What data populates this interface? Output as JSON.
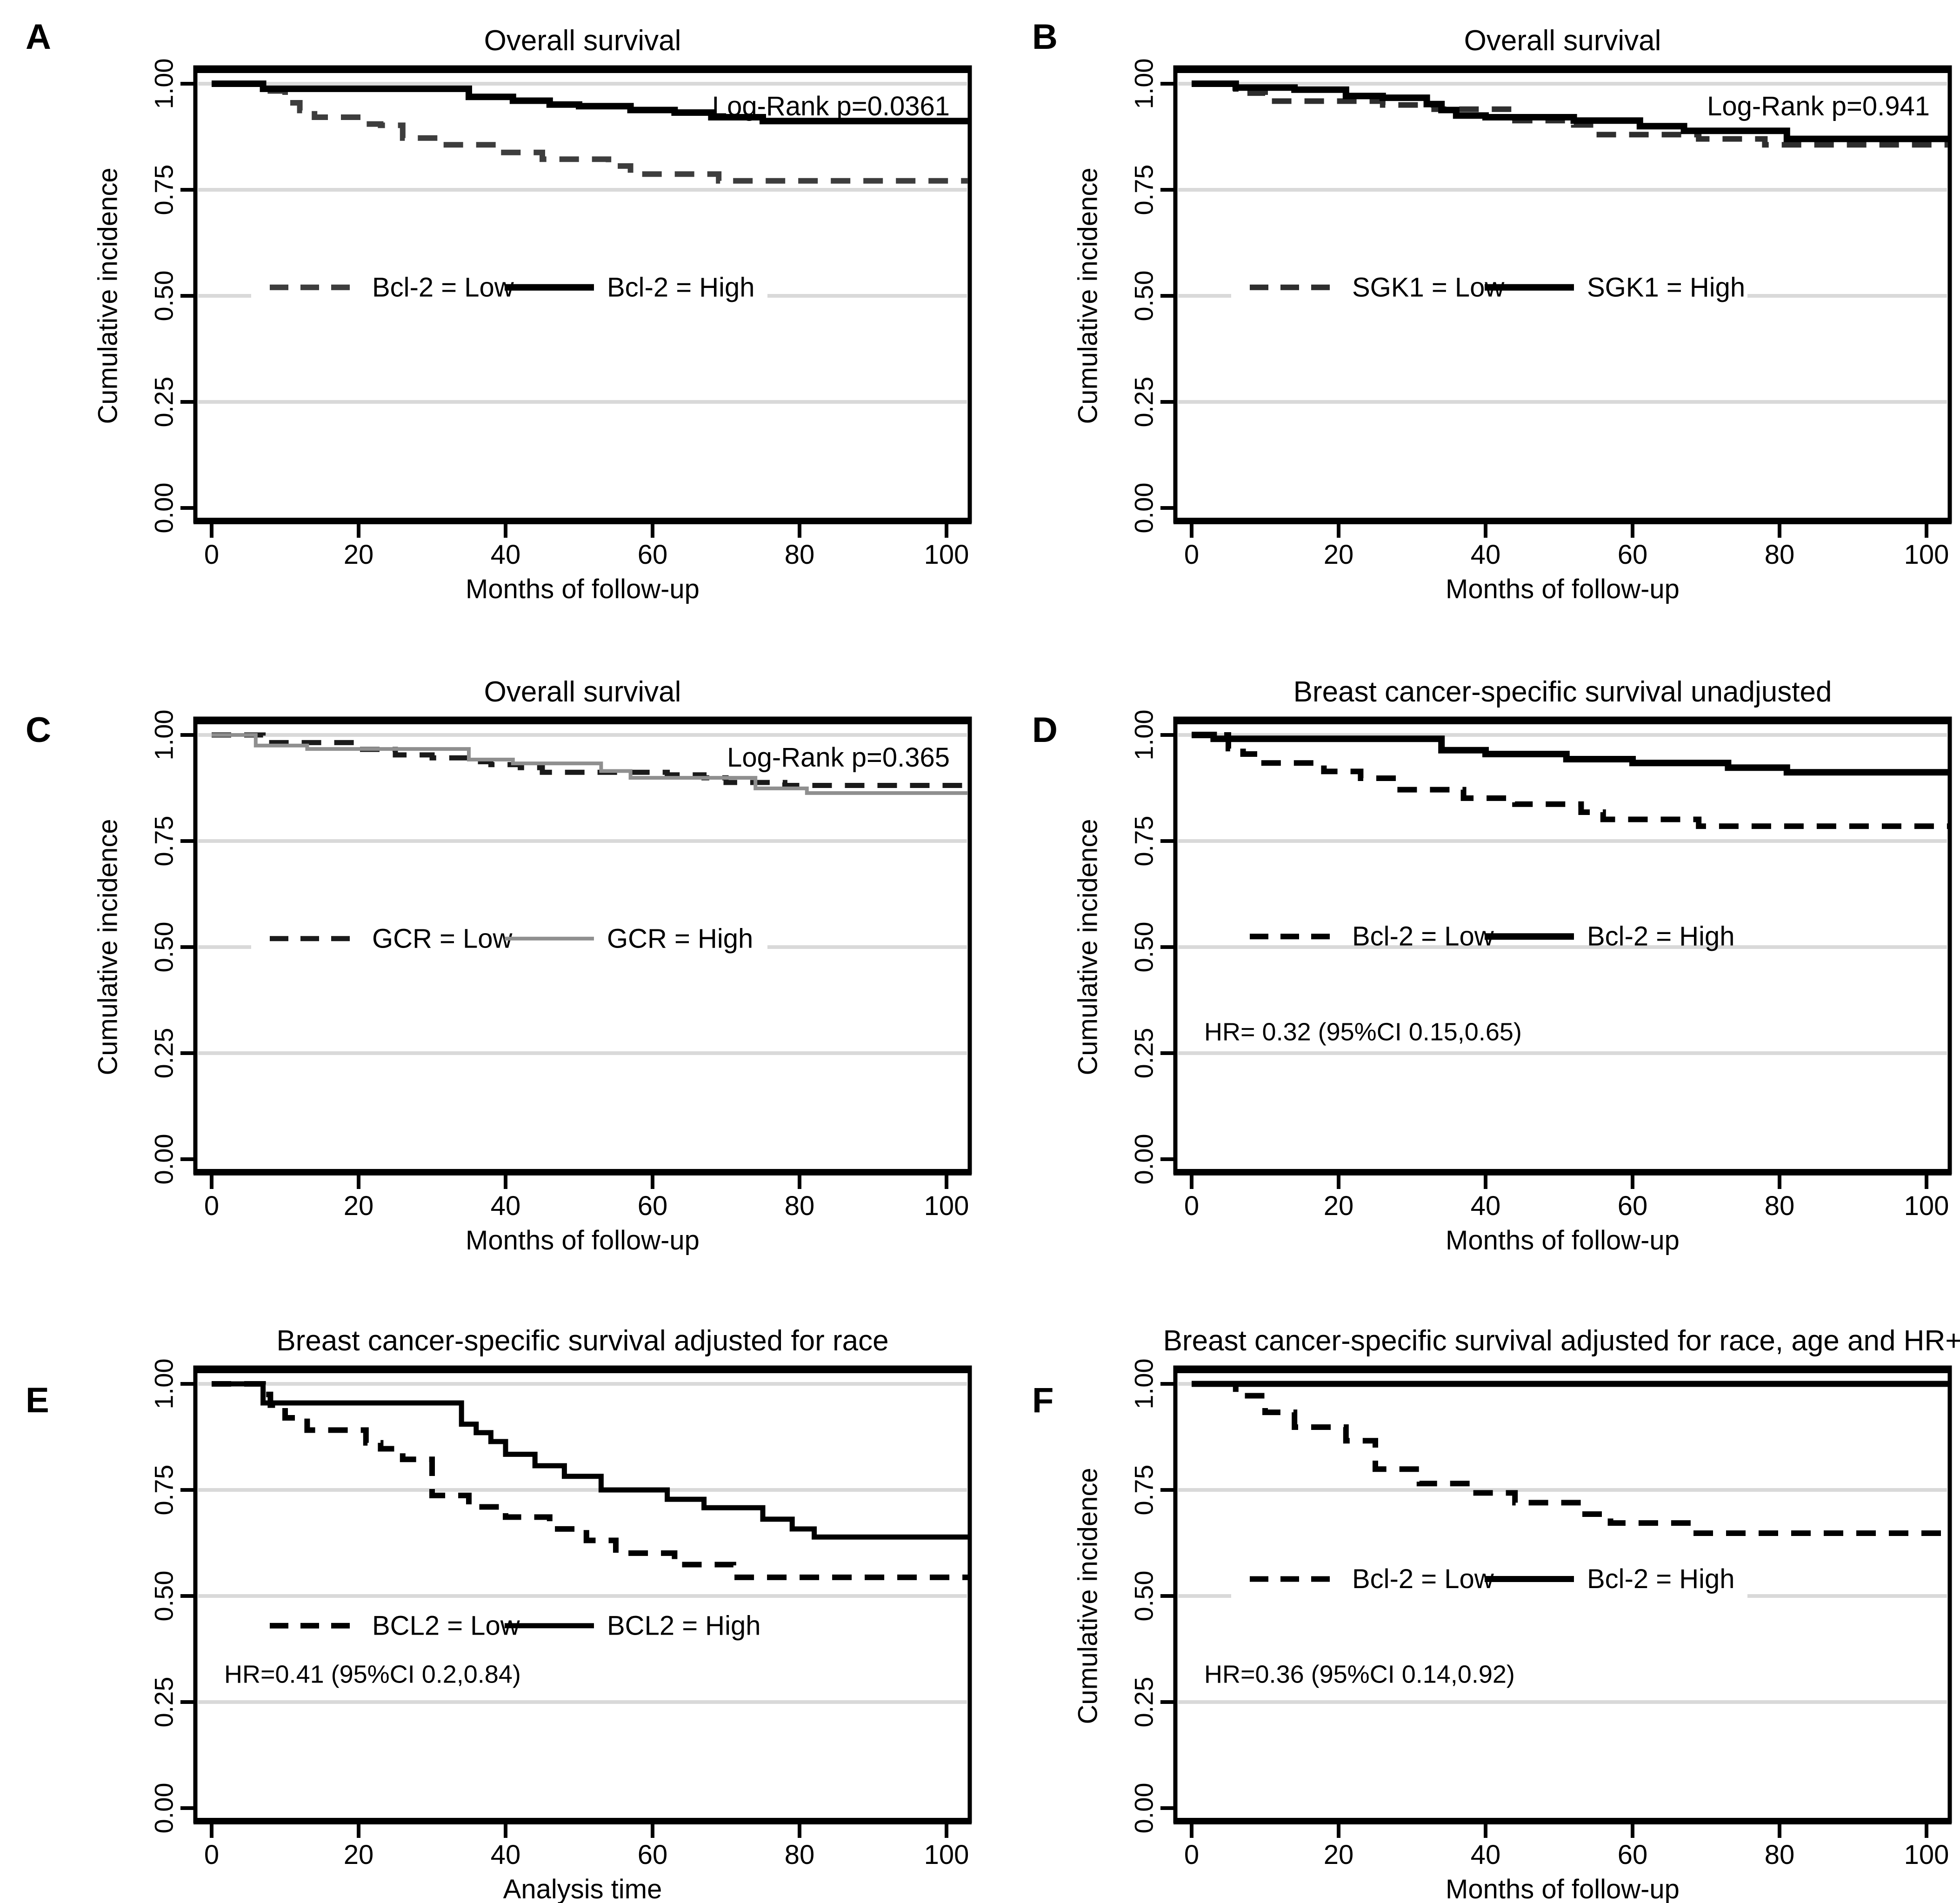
{
  "figure": {
    "background_color": "#ffffff",
    "grid_color": "#d9d9d9",
    "axis_color": "#000000"
  },
  "chart_data": [
    {
      "panel_label": "A",
      "type": "line",
      "subtype": "kaplan-meier-step",
      "title": "Overall survival",
      "xlabel": "Months of follow-up",
      "ylabel": "Cumulative incidence",
      "xlim": [
        0,
        103
      ],
      "ylim": [
        0,
        1.05
      ],
      "xticks": [
        0,
        20,
        40,
        60,
        80,
        100
      ],
      "yticks": [
        "0.00",
        "0.25",
        "0.50",
        "0.75",
        "1.00"
      ],
      "ytick_values": [
        0,
        0.25,
        0.5,
        0.75,
        1.0
      ],
      "grid_values": [
        0.25,
        0.5,
        0.75,
        1.0
      ],
      "grid_gap_at_050": true,
      "legend_position": "inside-left-middle",
      "legend_y": 0.52,
      "annotation_logrank": "Log-Rank p=0.0361",
      "annotation_hr": null,
      "annotation_hr_y": null,
      "series": [
        {
          "name": "Bcl-2 = Low",
          "style": "dashed",
          "color": "#3d3d3d",
          "width": 12,
          "points": [
            [
              0,
              1.0
            ],
            [
              8,
              0.983
            ],
            [
              10,
              0.955
            ],
            [
              12,
              0.937
            ],
            [
              14,
              0.921
            ],
            [
              21,
              0.905
            ],
            [
              23,
              0.902
            ],
            [
              26,
              0.872
            ],
            [
              31,
              0.856
            ],
            [
              39,
              0.838
            ],
            [
              45,
              0.822
            ],
            [
              54,
              0.806
            ],
            [
              57,
              0.787
            ],
            [
              69,
              0.771
            ]
          ]
        },
        {
          "name": "Bcl-2 = High",
          "style": "solid",
          "color": "#000000",
          "width": 14,
          "points": [
            [
              0,
              1.0
            ],
            [
              7,
              0.988
            ],
            [
              35,
              0.969
            ],
            [
              41,
              0.96
            ],
            [
              46,
              0.951
            ],
            [
              50,
              0.947
            ],
            [
              57,
              0.938
            ],
            [
              63,
              0.932
            ],
            [
              68,
              0.921
            ],
            [
              75,
              0.912
            ]
          ]
        }
      ]
    },
    {
      "panel_label": "B",
      "type": "line",
      "subtype": "kaplan-meier-step",
      "title": "Overall survival",
      "xlabel": "Months of follow-up",
      "ylabel": "Cumulative incidence",
      "xlim": [
        0,
        103
      ],
      "ylim": [
        0,
        1.05
      ],
      "xticks": [
        0,
        20,
        40,
        60,
        80,
        100
      ],
      "yticks": [
        "0.00",
        "0.25",
        "0.50",
        "0.75",
        "1.00"
      ],
      "ytick_values": [
        0,
        0.25,
        0.5,
        0.75,
        1.0
      ],
      "grid_values": [
        0.25,
        0.5,
        0.75,
        1.0
      ],
      "grid_gap_at_050": true,
      "legend_position": "inside-left-middle",
      "legend_y": 0.52,
      "annotation_logrank": "Log-Rank p=0.941",
      "annotation_hr": null,
      "annotation_hr_y": null,
      "series": [
        {
          "name": "SGK1 = Low",
          "style": "dashed",
          "color": "#2e2e2e",
          "width": 12,
          "points": [
            [
              0,
              1.0
            ],
            [
              6,
              0.978
            ],
            [
              10,
              0.959
            ],
            [
              26,
              0.95
            ],
            [
              33,
              0.94
            ],
            [
              44,
              0.913
            ],
            [
              52,
              0.903
            ],
            [
              55,
              0.88
            ],
            [
              69,
              0.87
            ],
            [
              78,
              0.856
            ]
          ]
        },
        {
          "name": "SGK1 = High",
          "style": "solid",
          "color": "#000000",
          "width": 14,
          "points": [
            [
              0,
              1.0
            ],
            [
              6,
              0.991
            ],
            [
              14,
              0.986
            ],
            [
              21,
              0.971
            ],
            [
              26,
              0.967
            ],
            [
              32,
              0.952
            ],
            [
              34,
              0.938
            ],
            [
              36,
              0.925
            ],
            [
              40,
              0.921
            ],
            [
              52,
              0.913
            ],
            [
              61,
              0.9
            ],
            [
              67,
              0.889
            ],
            [
              81,
              0.87
            ]
          ]
        }
      ]
    },
    {
      "panel_label": "C",
      "type": "line",
      "subtype": "kaplan-meier-step",
      "title": "Overall survival",
      "xlabel": "Months of follow-up",
      "ylabel": "Cumulative incidence",
      "xlim": [
        0,
        103
      ],
      "ylim": [
        0,
        1.05
      ],
      "xticks": [
        0,
        20,
        40,
        60,
        80,
        100
      ],
      "yticks": [
        "0.00",
        "0.25",
        "0.50",
        "0.75",
        "1.00"
      ],
      "ytick_values": [
        0,
        0.25,
        0.5,
        0.75,
        1.0
      ],
      "grid_values": [
        0.25,
        0.5,
        0.75,
        1.0
      ],
      "grid_gap_at_050": true,
      "legend_position": "inside-left-middle",
      "legend_y": 0.52,
      "annotation_logrank": "Log-Rank p=0.365",
      "annotation_hr": null,
      "annotation_hr_y": null,
      "series": [
        {
          "name": "GCR = Low",
          "style": "dashed",
          "color": "#1a1a1a",
          "width": 11,
          "points": [
            [
              0,
              1.0
            ],
            [
              7,
              0.982
            ],
            [
              20,
              0.966
            ],
            [
              25,
              0.953
            ],
            [
              30,
              0.946
            ],
            [
              35,
              0.937
            ],
            [
              38,
              0.93
            ],
            [
              42,
              0.923
            ],
            [
              45,
              0.912
            ],
            [
              62,
              0.906
            ],
            [
              67,
              0.899
            ],
            [
              70,
              0.888
            ],
            [
              78,
              0.881
            ]
          ]
        },
        {
          "name": "GCR = High",
          "style": "solid",
          "color": "#8f8f8f",
          "width": 8,
          "points": [
            [
              0,
              1.0
            ],
            [
              6,
              0.975
            ],
            [
              13,
              0.967
            ],
            [
              35,
              0.942
            ],
            [
              41,
              0.933
            ],
            [
              53,
              0.915
            ],
            [
              57,
              0.899
            ],
            [
              74,
              0.874
            ],
            [
              81,
              0.863
            ]
          ]
        }
      ]
    },
    {
      "panel_label": "D",
      "type": "line",
      "subtype": "kaplan-meier-step",
      "title": "Breast cancer-specific survival unadjusted",
      "xlabel": "Months of follow-up",
      "ylabel": "Cumulative incidence",
      "xlim": [
        0,
        103
      ],
      "ylim": [
        0,
        1.05
      ],
      "xticks": [
        0,
        20,
        40,
        60,
        80,
        100
      ],
      "yticks": [
        "0.00",
        "0.25",
        "0.50",
        "0.75",
        "1.00"
      ],
      "ytick_values": [
        0,
        0.25,
        0.5,
        0.75,
        1.0
      ],
      "grid_values": [
        0.25,
        0.5,
        0.75,
        1.0
      ],
      "grid_gap_at_050": false,
      "legend_position": "inside-left-middle",
      "legend_y": 0.525,
      "annotation_logrank": null,
      "annotation_hr": "HR= 0.32 (95%CI 0.15,0.65)",
      "annotation_hr_y": 0.3,
      "series": [
        {
          "name": "Bcl-2 = Low",
          "style": "dashed",
          "color": "#000000",
          "width": 12,
          "points": [
            [
              0,
              1.0
            ],
            [
              5,
              0.968
            ],
            [
              7,
              0.955
            ],
            [
              9,
              0.934
            ],
            [
              18,
              0.914
            ],
            [
              23,
              0.898
            ],
            [
              28,
              0.871
            ],
            [
              37,
              0.851
            ],
            [
              44,
              0.837
            ],
            [
              53,
              0.818
            ],
            [
              56,
              0.801
            ],
            [
              69,
              0.785
            ]
          ]
        },
        {
          "name": "Bcl-2 = High",
          "style": "solid",
          "color": "#000000",
          "width": 14,
          "points": [
            [
              0,
              1.0
            ],
            [
              3,
              0.991
            ],
            [
              34,
              0.964
            ],
            [
              40,
              0.955
            ],
            [
              51,
              0.943
            ],
            [
              60,
              0.934
            ],
            [
              73,
              0.923
            ],
            [
              81,
              0.912
            ]
          ]
        }
      ]
    },
    {
      "panel_label": "E",
      "type": "line",
      "subtype": "kaplan-meier-step",
      "title": "Breast cancer-specific survival adjusted for race",
      "xlabel": "Analysis time",
      "ylabel": null,
      "xlim": [
        0,
        103
      ],
      "ylim": [
        0,
        1.05
      ],
      "xticks": [
        0,
        20,
        40,
        60,
        80,
        100
      ],
      "yticks": [
        "0.00",
        "0.25",
        "0.50",
        "0.75",
        "1.00"
      ],
      "ytick_values": [
        0,
        0.25,
        0.5,
        0.75,
        1.0
      ],
      "grid_values": [
        0.25,
        0.5,
        0.75,
        1.0
      ],
      "grid_gap_at_050": false,
      "legend_position": "inside-left-lower",
      "legend_y": 0.43,
      "annotation_logrank": null,
      "annotation_hr": "HR=0.41 (95%CI 0.2,0.84)",
      "annotation_hr_y": 0.315,
      "series": [
        {
          "name": "BCL2 = Low",
          "style": "dashed",
          "color": "#000000",
          "width": 12,
          "points": [
            [
              0,
              1.0
            ],
            [
              7,
              0.975
            ],
            [
              8,
              0.95
            ],
            [
              10,
              0.92
            ],
            [
              13,
              0.891
            ],
            [
              21,
              0.861
            ],
            [
              23,
              0.847
            ],
            [
              26,
              0.822
            ],
            [
              30,
              0.737
            ],
            [
              35,
              0.71
            ],
            [
              40,
              0.686
            ],
            [
              46,
              0.658
            ],
            [
              51,
              0.631
            ],
            [
              55,
              0.601
            ],
            [
              63,
              0.574
            ],
            [
              71,
              0.544
            ]
          ]
        },
        {
          "name": "BCL2 = High",
          "style": "solid",
          "color": "#000000",
          "width": 11,
          "points": [
            [
              0,
              1.0
            ],
            [
              7,
              0.955
            ],
            [
              34,
              0.905
            ],
            [
              36,
              0.885
            ],
            [
              38,
              0.864
            ],
            [
              40,
              0.834
            ],
            [
              44,
              0.807
            ],
            [
              48,
              0.782
            ],
            [
              53,
              0.75
            ],
            [
              62,
              0.728
            ],
            [
              67,
              0.708
            ],
            [
              75,
              0.681
            ],
            [
              79,
              0.658
            ],
            [
              82,
              0.639
            ]
          ]
        }
      ]
    },
    {
      "panel_label": "F",
      "type": "line",
      "subtype": "kaplan-meier-step",
      "title": "Breast cancer-specific survival adjusted for race, age and HR+",
      "xlabel": "Months of follow-up",
      "ylabel": "Cumulative incidence",
      "xlim": [
        0,
        103
      ],
      "ylim": [
        0,
        1.05
      ],
      "xticks": [
        0,
        20,
        40,
        60,
        80,
        100
      ],
      "yticks": [
        "0.00",
        "0.25",
        "0.50",
        "0.75",
        "1.00"
      ],
      "ytick_values": [
        0,
        0.25,
        0.5,
        0.75,
        1.0
      ],
      "grid_values": [
        0.25,
        0.5,
        0.75,
        1.0
      ],
      "grid_gap_at_050": true,
      "legend_position": "inside-left-middle",
      "legend_y": 0.54,
      "annotation_logrank": null,
      "annotation_hr": "HR=0.36 (95%CI 0.14,0.92)",
      "annotation_hr_y": 0.315,
      "series": [
        {
          "name": "Bcl-2 = Low",
          "style": "dashed",
          "color": "#000000",
          "width": 12,
          "points": [
            [
              0,
              1.0
            ],
            [
              6,
              0.972
            ],
            [
              10,
              0.933
            ],
            [
              14,
              0.898
            ],
            [
              21,
              0.866
            ],
            [
              25,
              0.799
            ],
            [
              31,
              0.765
            ],
            [
              38,
              0.743
            ],
            [
              44,
              0.72
            ],
            [
              53,
              0.693
            ],
            [
              57,
              0.672
            ],
            [
              68,
              0.648
            ]
          ]
        },
        {
          "name": "Bcl-2 = High",
          "style": "solid",
          "color": "#000000",
          "width": 13,
          "points": [
            [
              0,
              1.0
            ]
          ]
        }
      ]
    }
  ]
}
